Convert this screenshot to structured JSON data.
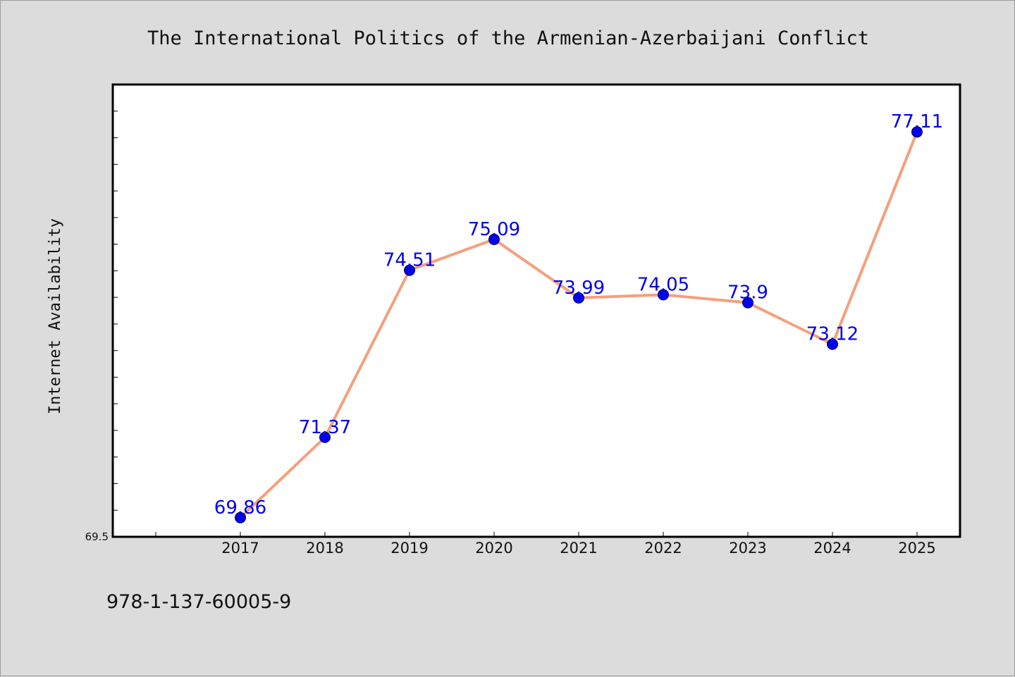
{
  "colors": {
    "background": "#dcdcdc",
    "plot_background": "#ffffff",
    "line": "#f4a07c",
    "marker": "#0000ee",
    "data_label": "#0000ee"
  },
  "footer": {
    "isbn": "978-1-137-60005-9"
  },
  "chart_data": {
    "type": "line",
    "title": "The International Politics of the Armenian-Azerbaijani Conflict",
    "xlabel": "",
    "ylabel": "Internet Availability",
    "categories": [
      "2017",
      "2018",
      "2019",
      "2020",
      "2021",
      "2022",
      "2023",
      "2024",
      "2025"
    ],
    "series": [
      {
        "values": [
          69.86,
          71.37,
          74.51,
          75.09,
          73.99,
          74.05,
          73.9,
          73.12,
          77.11
        ]
      }
    ],
    "data_labels": [
      "69.86",
      "71.37",
      "74.51",
      "75.09",
      "73.99",
      "74.05",
      "73.9",
      "73.12",
      "77.11"
    ],
    "ylim": [
      69.5,
      78.0
    ],
    "yticks_labeled": [
      "69.5"
    ],
    "grid": false,
    "legend": "none"
  }
}
